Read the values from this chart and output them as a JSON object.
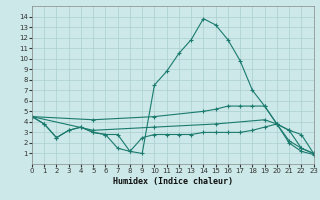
{
  "xlabel": "Humidex (Indice chaleur)",
  "bg_color": "#cce8e8",
  "line_color": "#1a7a6e",
  "grid_color": "#aacfcf",
  "xlim": [
    0,
    23
  ],
  "ylim": [
    0,
    15
  ],
  "xticks": [
    0,
    1,
    2,
    3,
    4,
    5,
    6,
    7,
    8,
    9,
    10,
    11,
    12,
    13,
    14,
    15,
    16,
    17,
    18,
    19,
    20,
    21,
    22,
    23
  ],
  "yticks": [
    1,
    2,
    3,
    4,
    5,
    6,
    7,
    8,
    9,
    10,
    11,
    12,
    13,
    14
  ],
  "lines": [
    {
      "x": [
        0,
        1,
        2,
        3,
        4,
        5,
        6,
        7,
        8,
        9,
        10,
        11,
        12,
        13,
        14,
        15,
        16,
        17,
        18,
        19,
        20,
        21,
        22,
        23
      ],
      "y": [
        4.5,
        3.8,
        2.5,
        3.2,
        3.5,
        3.0,
        2.8,
        2.8,
        1.2,
        1.0,
        7.5,
        8.8,
        10.5,
        11.8,
        13.8,
        13.2,
        11.8,
        9.8,
        7.0,
        5.5,
        3.8,
        2.0,
        1.2,
        0.9
      ]
    },
    {
      "x": [
        0,
        1,
        2,
        3,
        4,
        5,
        6,
        7,
        8,
        9,
        10,
        11,
        12,
        13,
        14,
        15,
        16,
        17,
        18,
        19,
        20,
        21,
        22,
        23
      ],
      "y": [
        4.5,
        3.8,
        2.5,
        3.2,
        3.5,
        3.0,
        2.8,
        1.5,
        1.2,
        2.5,
        2.8,
        2.8,
        2.8,
        2.8,
        3.0,
        3.0,
        3.0,
        3.0,
        3.2,
        3.5,
        3.8,
        2.2,
        1.5,
        1.0
      ]
    },
    {
      "x": [
        0,
        5,
        10,
        14,
        15,
        16,
        17,
        18,
        19,
        20,
        21,
        22,
        23
      ],
      "y": [
        4.5,
        4.2,
        4.5,
        5.0,
        5.2,
        5.5,
        5.5,
        5.5,
        5.5,
        3.8,
        3.2,
        2.8,
        1.0
      ]
    },
    {
      "x": [
        0,
        5,
        10,
        15,
        19,
        20,
        21,
        22,
        23
      ],
      "y": [
        4.5,
        3.2,
        3.5,
        3.8,
        4.2,
        3.8,
        3.2,
        1.5,
        1.0
      ]
    }
  ]
}
